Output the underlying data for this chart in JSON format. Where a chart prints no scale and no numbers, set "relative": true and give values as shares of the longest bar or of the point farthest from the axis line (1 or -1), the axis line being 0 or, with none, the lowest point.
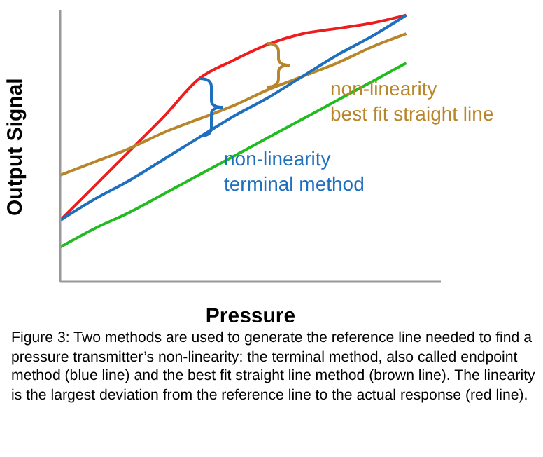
{
  "chart_data": {
    "type": "line",
    "relative": true,
    "xlabel": "Pressure",
    "ylabel": "Output Signal",
    "legend": false,
    "grid": false,
    "marker": "none",
    "line_style": "solid",
    "categories": [
      null,
      null,
      null,
      null,
      null,
      null,
      null,
      null,
      null,
      null,
      null
    ],
    "series": [
      {
        "color": "#ee1c1c",
        "values": [
          0.23,
          0.36,
          0.49,
          0.62,
          0.76,
          0.83,
          0.89,
          0.93,
          0.95,
          0.97,
          1.0
        ]
      },
      {
        "color": "#b8862a",
        "values": [
          0.4,
          0.45,
          0.5,
          0.56,
          0.61,
          0.66,
          0.72,
          0.77,
          0.82,
          0.88,
          0.93
        ]
      },
      {
        "color": "#1f6fbf",
        "values": [
          0.23,
          0.31,
          0.38,
          0.46,
          0.54,
          0.62,
          0.69,
          0.77,
          0.85,
          0.92,
          1.0
        ]
      },
      {
        "color": "#22bb22",
        "values": [
          0.13,
          0.2,
          0.26,
          0.33,
          0.4,
          0.47,
          0.54,
          0.61,
          0.68,
          0.75,
          0.82
        ]
      }
    ],
    "annotations": [
      "non-linearity\nbest fit straight line",
      "non-linearity\nterminal method",
      "Figure 3: Two methods are used to generate the reference line needed to find a pressure transmitter’s non-linearity: the terminal method, also called endpoint method (blue line) and the best fit straight line method (brown line). The linearity is the largest deviation from the reference line to the actual response (red line)."
    ]
  }
}
